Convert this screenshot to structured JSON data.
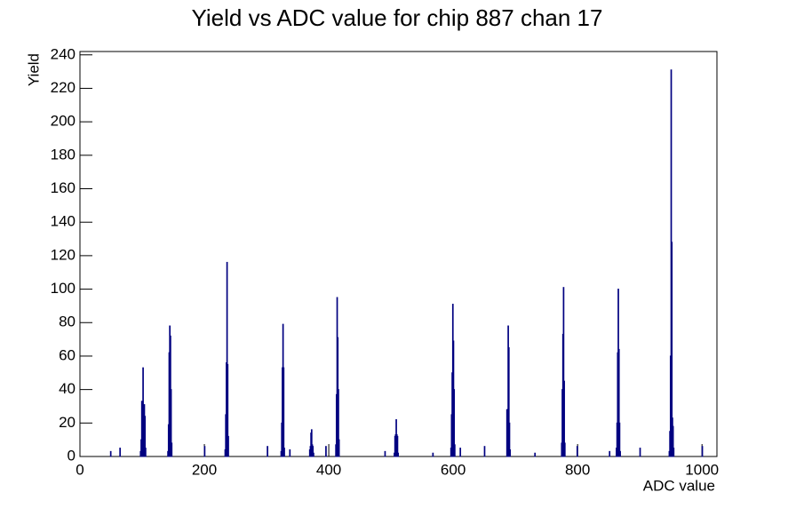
{
  "chart_data": {
    "type": "histogram",
    "title": "Yield vs ADC value for chip 887 chan 17",
    "x_label": "ADC value",
    "y_label": "Yield",
    "color": "#000080",
    "xlim": [
      0,
      1024
    ],
    "xticks": [
      0,
      200,
      400,
      600,
      800,
      1000
    ],
    "ylim": [
      0,
      242
    ],
    "yticks": [
      0,
      20,
      40,
      60,
      80,
      100,
      120,
      140,
      160,
      180,
      200,
      220,
      240
    ],
    "x": [
      49,
      64,
      97,
      98,
      99,
      100,
      101,
      102,
      103,
      104,
      105,
      141,
      142,
      143,
      144,
      145,
      146,
      147,
      200,
      233,
      234,
      235,
      236,
      237,
      238,
      301,
      323,
      324,
      325,
      326,
      327,
      328,
      337,
      369,
      370,
      371,
      372,
      373,
      374,
      375,
      395,
      411,
      412,
      413,
      414,
      415,
      416,
      490,
      505,
      506,
      507,
      508,
      509,
      510,
      511,
      567,
      596,
      597,
      598,
      599,
      600,
      601,
      602,
      611,
      650,
      686,
      687,
      688,
      689,
      690,
      691,
      731,
      774,
      775,
      776,
      777,
      778,
      779,
      799,
      851,
      862,
      863,
      864,
      865,
      866,
      867,
      868,
      900,
      947,
      948,
      949,
      950,
      951,
      952,
      953,
      954,
      1000
    ],
    "values": [
      3,
      5,
      3,
      10,
      33,
      32,
      53,
      25,
      31,
      24,
      5,
      3,
      19,
      62,
      78,
      72,
      40,
      8,
      6,
      4,
      25,
      56,
      116,
      55,
      12,
      6,
      3,
      20,
      53,
      79,
      53,
      5,
      4,
      4,
      6,
      14,
      16,
      7,
      6,
      2,
      6,
      7,
      37,
      95,
      71,
      40,
      10,
      3,
      2,
      12,
      13,
      22,
      13,
      12,
      2,
      2,
      5,
      25,
      50,
      91,
      69,
      40,
      7,
      5,
      6,
      28,
      28,
      78,
      65,
      20,
      4,
      2,
      8,
      40,
      73,
      101,
      45,
      8,
      6,
      3,
      5,
      20,
      62,
      100,
      64,
      20,
      3,
      5,
      3,
      15,
      60,
      231,
      128,
      23,
      18,
      5,
      6
    ]
  }
}
